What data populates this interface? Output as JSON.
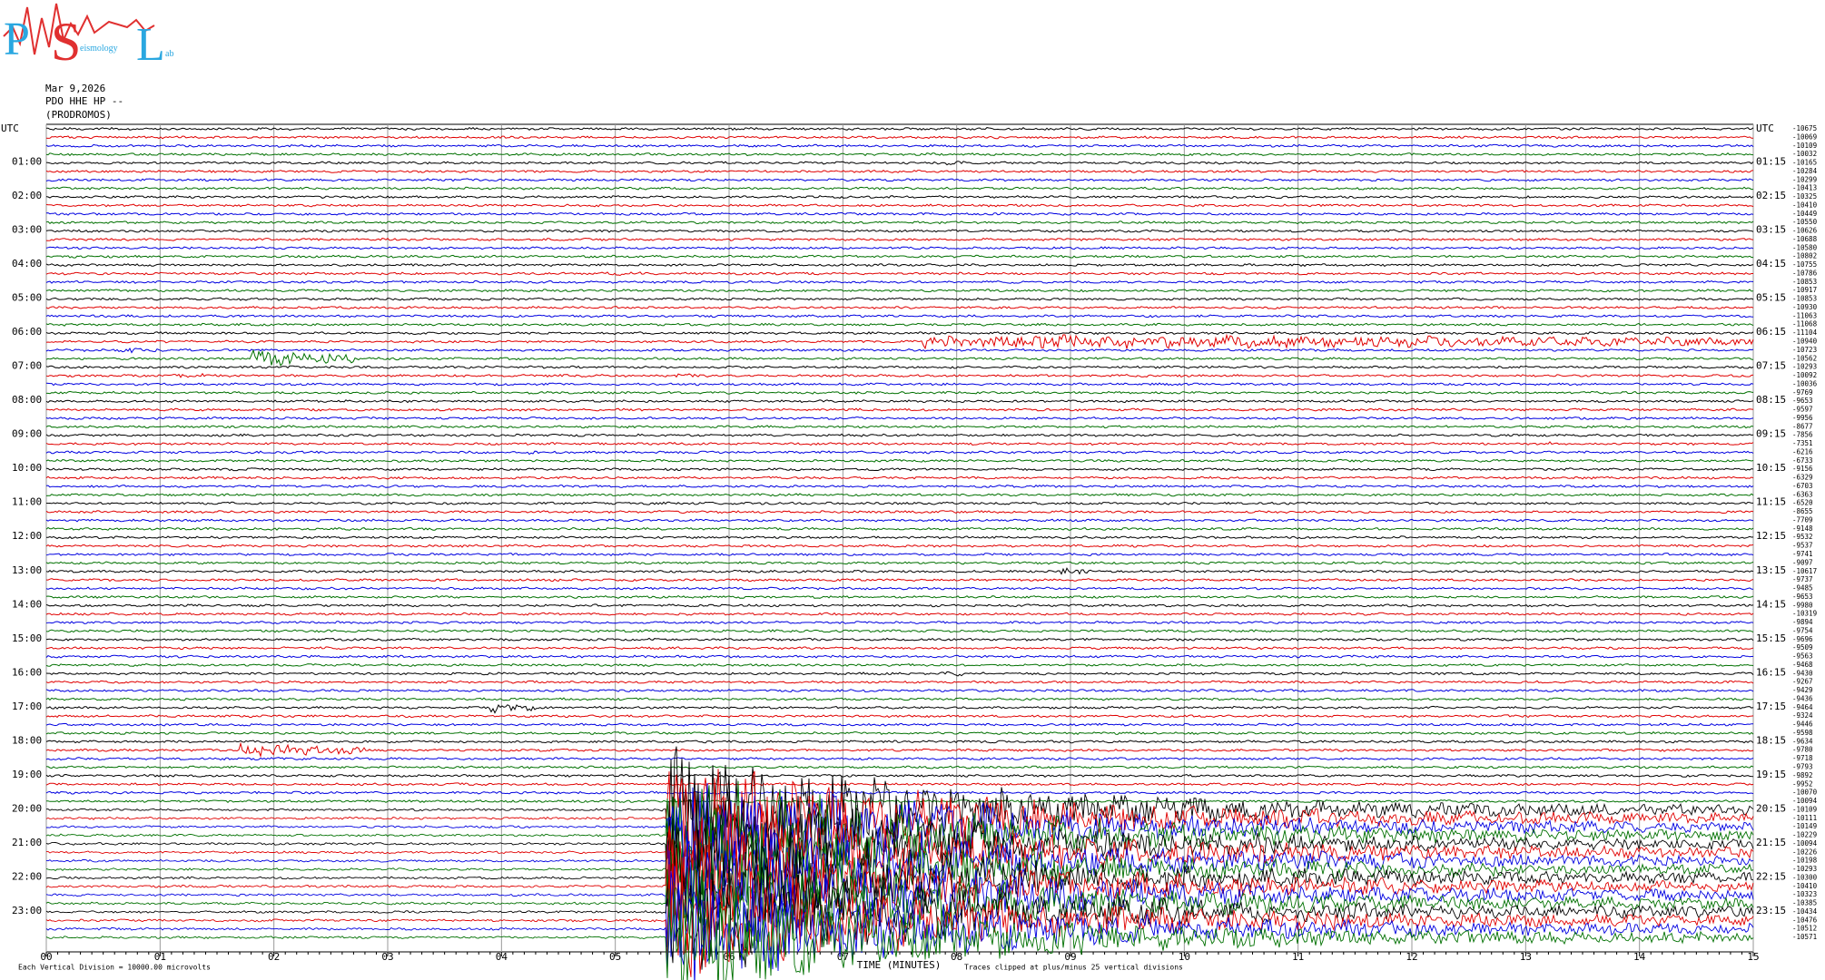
{
  "header": {
    "logo": {
      "p": "P",
      "s": "S",
      "l": "L",
      "small_s": "eismology",
      "small_l": "ab"
    },
    "date": "Mar 9,2026",
    "station": "PDO HHE HP --",
    "location": "(PRODROMOS)"
  },
  "left_labels": [
    "UTC",
    "01:00",
    "02:00",
    "03:00",
    "04:00",
    "05:00",
    "06:00",
    "07:00",
    "08:00",
    "09:00",
    "10:00",
    "11:00",
    "12:00",
    "13:00",
    "14:00",
    "15:00",
    "16:00",
    "17:00",
    "18:00",
    "19:00",
    "20:00",
    "21:00",
    "22:00",
    "23:00"
  ],
  "right_labels": [
    "UTC",
    "01:15",
    "02:15",
    "03:15",
    "04:15",
    "05:15",
    "06:15",
    "07:15",
    "08:15",
    "09:15",
    "10:15",
    "11:15",
    "12:15",
    "13:15",
    "14:15",
    "15:15",
    "16:15",
    "17:15",
    "18:15",
    "19:15",
    "20:15",
    "21:15",
    "22:15",
    "23:15"
  ],
  "offsets": [
    -10675,
    -10069,
    -10109,
    -10032,
    -10165,
    -10284,
    -10299,
    -10413,
    -10325,
    -10410,
    -10449,
    -10550,
    -10626,
    -10688,
    -10580,
    -10802,
    -10755,
    -10786,
    -10853,
    -10917,
    -10853,
    -10930,
    -11063,
    -11068,
    -11104,
    -10940,
    -10723,
    -10562,
    -10293,
    -10092,
    -10036,
    -9769,
    -9653,
    -9597,
    -9956,
    -8677,
    -7856,
    -7351,
    -6216,
    -6733,
    -9156,
    -6329,
    -6703,
    -6363,
    -6520,
    -8655,
    -7709,
    -9148,
    -9532,
    -9537,
    -9741,
    -9097,
    -10617,
    -9737,
    -9485,
    -9653,
    -9980,
    -10319,
    -9894,
    -9754,
    -9696,
    -9509,
    -9563,
    -9468,
    -9430,
    -9267,
    -9429,
    -9436,
    -9464,
    -9324,
    -9446,
    -9598,
    -9634,
    -9780,
    -9718,
    -9793,
    -9892,
    -9952,
    -10070,
    -10094,
    -10109,
    -10111,
    -10149,
    -10229,
    -10094,
    -10226,
    -10198,
    -10293,
    -10300,
    -10410,
    -10323,
    -10385,
    -10434,
    -10476,
    -10512,
    -10571
  ],
  "x_ticks": [
    "00",
    "01",
    "02",
    "03",
    "04",
    "05",
    "06",
    "07",
    "08",
    "09",
    "10",
    "11",
    "12",
    "13",
    "14",
    "15"
  ],
  "x_label": "TIME (MINUTES)",
  "footer": {
    "scale": "Each Vertical Division = 10000.00 microvolts",
    "clip": "Traces clipped at plus/minus 25 vertical divisions"
  }
}
